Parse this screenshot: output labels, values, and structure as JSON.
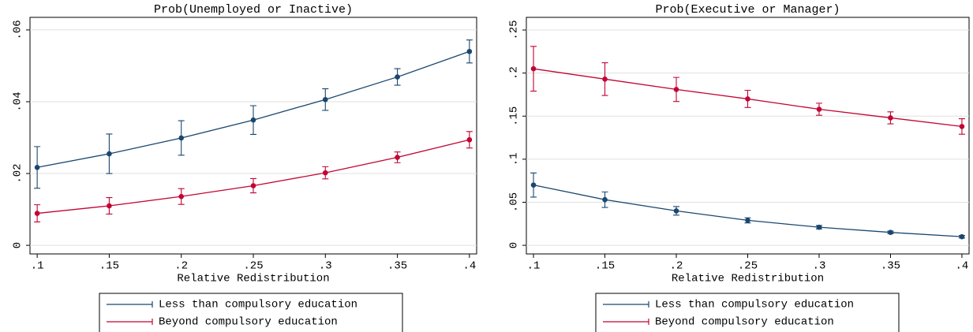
{
  "chart_data": [
    {
      "type": "line",
      "title": "Prob(Unemployed or Inactive)",
      "x_label": "Relative Redistribution",
      "x": [
        0.1,
        0.15,
        0.2,
        0.25,
        0.3,
        0.35,
        0.4
      ],
      "xlim": [
        0.095,
        0.405
      ],
      "xticks": [
        {
          "value": 0.1,
          "label": ".1"
        },
        {
          "value": 0.15,
          "label": ".15"
        },
        {
          "value": 0.2,
          "label": ".2"
        },
        {
          "value": 0.25,
          "label": ".25"
        },
        {
          "value": 0.3,
          "label": ".3"
        },
        {
          "value": 0.35,
          "label": ".35"
        },
        {
          "value": 0.4,
          "label": ".4"
        }
      ],
      "ylim": [
        -0.0024,
        0.0635
      ],
      "yticks": [
        0,
        {
          "value": 0.02,
          "label": ".02"
        },
        {
          "value": 0.04,
          "label": ".04"
        },
        {
          "value": 0.06,
          "label": ".06"
        }
      ],
      "grid": true,
      "legend": "bottom",
      "series": [
        {
          "name": "Less than compulsory education",
          "color": "#1a476f",
          "values": [
            0.0217,
            0.0255,
            0.0299,
            0.0349,
            0.0406,
            0.0469,
            0.054
          ],
          "errors": [
            0.0058,
            0.0055,
            0.0048,
            0.004,
            0.003,
            0.0023,
            0.0032
          ]
        },
        {
          "name": "Beyond compulsory education",
          "color": "#c10534",
          "values": [
            0.0089,
            0.011,
            0.0136,
            0.0166,
            0.0202,
            0.0245,
            0.0294
          ],
          "errors": [
            0.0024,
            0.0023,
            0.0022,
            0.002,
            0.0017,
            0.0015,
            0.0023
          ]
        }
      ]
    },
    {
      "type": "line",
      "title": "Prob(Executive or Manager)",
      "x_label": "Relative Redistribution",
      "x": [
        0.1,
        0.15,
        0.2,
        0.25,
        0.3,
        0.35,
        0.4
      ],
      "xlim": [
        0.095,
        0.405
      ],
      "xticks": [
        {
          "value": 0.1,
          "label": ".1"
        },
        {
          "value": 0.15,
          "label": ".15"
        },
        {
          "value": 0.2,
          "label": ".2"
        },
        {
          "value": 0.25,
          "label": ".25"
        },
        {
          "value": 0.3,
          "label": ".3"
        },
        {
          "value": 0.35,
          "label": ".35"
        },
        {
          "value": 0.4,
          "label": ".4"
        }
      ],
      "ylim": [
        -0.01,
        0.2647
      ],
      "yticks": [
        0,
        {
          "value": 0.05,
          "label": ".05"
        },
        {
          "value": 0.1,
          "label": ".1"
        },
        {
          "value": 0.15,
          "label": ".15"
        },
        {
          "value": 0.2,
          "label": ".2"
        },
        {
          "value": 0.25,
          "label": ".25"
        }
      ],
      "grid": true,
      "legend": "bottom",
      "series": [
        {
          "name": "Less than compulsory education",
          "color": "#1a476f",
          "values": [
            0.07,
            0.053,
            0.04,
            0.029,
            0.021,
            0.015,
            0.01
          ],
          "errors": [
            0.014,
            0.009,
            0.005,
            0.003,
            0.002,
            0.0015,
            0.0015
          ]
        },
        {
          "name": "Beyond compulsory education",
          "color": "#c10534",
          "values": [
            0.205,
            0.193,
            0.181,
            0.17,
            0.158,
            0.148,
            0.138
          ],
          "errors": [
            0.026,
            0.019,
            0.014,
            0.01,
            0.007,
            0.007,
            0.009
          ]
        }
      ]
    }
  ]
}
